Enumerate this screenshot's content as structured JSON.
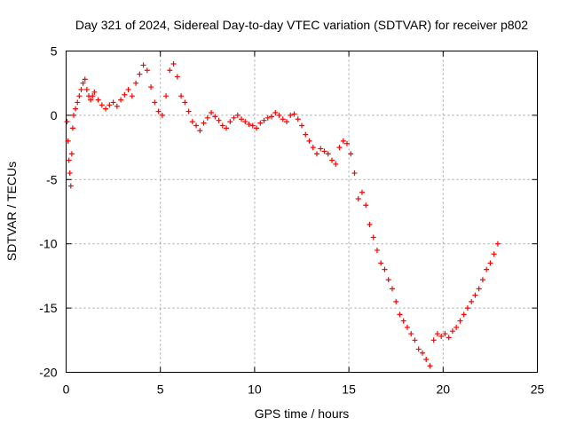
{
  "chart_data": {
    "type": "scatter",
    "title": "Day 321 of 2024, Sidereal Day-to-day VTEC variation (SDTVAR) for receiver p802",
    "xlabel": "GPS time / hours",
    "ylabel": "SDTVAR / TECUs",
    "xlim": [
      0,
      25
    ],
    "ylim": [
      -20,
      5
    ],
    "xticks": [
      "0",
      "5",
      "10",
      "15",
      "20",
      "25"
    ],
    "yticks": [
      "5",
      "0",
      "-5",
      "-10",
      "-15",
      "-20"
    ],
    "grid": true,
    "marker": "plus",
    "color": "#ff0000",
    "series": [
      {
        "name": "SDTVAR",
        "x": [
          0.05,
          0.1,
          0.15,
          0.2,
          0.25,
          0.3,
          0.35,
          0.4,
          0.5,
          0.6,
          0.7,
          0.8,
          0.9,
          1.0,
          1.1,
          1.2,
          1.3,
          1.4,
          1.5,
          1.7,
          1.9,
          2.1,
          2.3,
          2.5,
          2.7,
          2.9,
          3.1,
          3.3,
          3.5,
          3.7,
          3.9,
          4.1,
          4.3,
          4.5,
          4.7,
          4.9,
          5.1,
          5.3,
          5.5,
          5.7,
          5.9,
          6.1,
          6.3,
          6.5,
          6.7,
          6.9,
          7.1,
          7.3,
          7.5,
          7.7,
          7.9,
          8.1,
          8.3,
          8.5,
          8.7,
          8.9,
          9.1,
          9.3,
          9.5,
          9.7,
          9.9,
          10.1,
          10.3,
          10.5,
          10.7,
          10.9,
          11.1,
          11.3,
          11.5,
          11.7,
          11.9,
          12.1,
          12.3,
          12.5,
          12.7,
          12.9,
          13.1,
          13.3,
          13.5,
          13.7,
          13.9,
          14.1,
          14.3,
          14.5,
          14.7,
          14.9,
          15.1,
          15.3,
          15.5,
          15.7,
          15.9,
          16.1,
          16.3,
          16.5,
          16.7,
          16.9,
          17.1,
          17.3,
          17.5,
          17.7,
          17.9,
          18.1,
          18.3,
          18.5,
          18.7,
          18.9,
          19.1,
          19.3,
          19.5,
          19.7,
          19.9,
          20.1,
          20.3,
          20.5,
          20.7,
          20.9,
          21.1,
          21.3,
          21.5,
          21.7,
          21.9,
          22.1,
          22.3,
          22.5,
          22.7,
          22.9
        ],
        "y": [
          -0.5,
          -2.0,
          -3.5,
          -4.5,
          -5.5,
          -3.0,
          -1.0,
          0.0,
          0.5,
          1.0,
          1.5,
          2.0,
          2.5,
          2.8,
          2.0,
          1.5,
          1.2,
          1.5,
          1.8,
          1.2,
          0.8,
          0.5,
          0.8,
          1.0,
          0.7,
          1.2,
          1.6,
          2.0,
          1.5,
          2.5,
          3.2,
          3.9,
          3.5,
          2.2,
          1.0,
          0.3,
          0.0,
          1.5,
          3.5,
          4.0,
          3.0,
          1.5,
          1.0,
          0.3,
          -0.5,
          -0.8,
          -1.2,
          -0.6,
          -0.2,
          0.2,
          -0.1,
          -0.4,
          -0.8,
          -1.0,
          -0.5,
          -0.2,
          0.0,
          -0.3,
          -0.5,
          -0.7,
          -0.8,
          -1.0,
          -0.6,
          -0.4,
          -0.2,
          -0.1,
          0.2,
          0.0,
          -0.3,
          -0.5,
          0.0,
          0.1,
          -0.3,
          -0.8,
          -1.5,
          -2.0,
          -2.5,
          -3.0,
          -2.6,
          -2.8,
          -3.0,
          -3.5,
          -3.8,
          -2.5,
          -2.0,
          -2.2,
          -3.0,
          -4.5,
          -6.5,
          -6.0,
          -7.0,
          -8.5,
          -9.5,
          -10.5,
          -11.5,
          -12.0,
          -12.8,
          -13.5,
          -14.5,
          -15.5,
          -16.0,
          -16.5,
          -17.0,
          -17.5,
          -18.2,
          -18.5,
          -19.0,
          -19.5,
          -17.5,
          -17.0,
          -17.2,
          -17.0,
          -17.3,
          -16.8,
          -16.5,
          -16.0,
          -15.5,
          -15.0,
          -14.5,
          -14.0,
          -13.5,
          -12.8,
          -12.0,
          -11.5,
          -10.8,
          -10.0
        ]
      }
    ]
  }
}
